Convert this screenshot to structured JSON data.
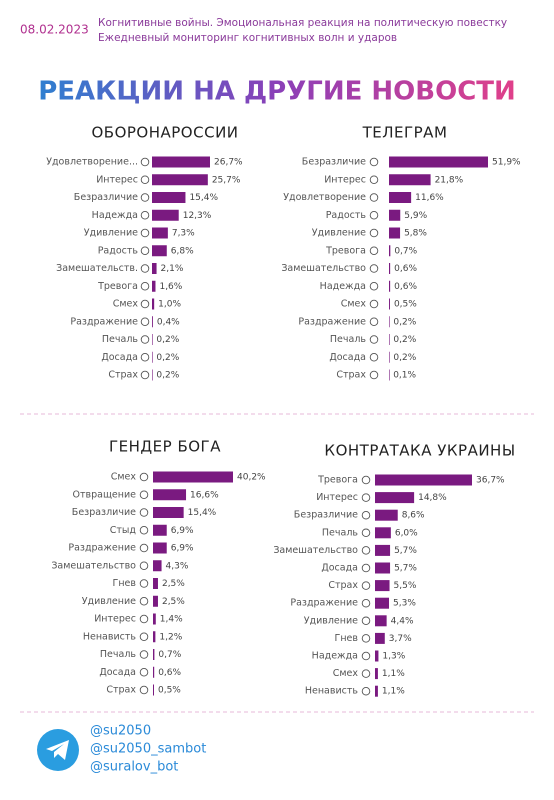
{
  "header": {
    "date": "08.02.2023",
    "subtitle_line1": "Когнитивные войны. Эмоциональная реакция на политическую повестку",
    "subtitle_line2": "Ежедневный мониторинг когнитивных волн и ударов",
    "title": "РЕАКЦИИ НА ДРУГИЕ НОВОСТИ"
  },
  "chart_data": [
    {
      "type": "bar",
      "orientation": "horizontal",
      "title": "ОБОРОНАРОССИИ",
      "color": "#7a1a80",
      "categories": [
        "Удовлетворение...",
        "Интерес",
        "Безразличие",
        "Надежда",
        "Удивление",
        "Радость",
        "Замешательств.",
        "Тревога",
        "Смех",
        "Раздражение",
        "Печаль",
        "Досада",
        "Страх"
      ],
      "values": [
        26.7,
        25.7,
        15.4,
        12.3,
        7.3,
        6.8,
        2.1,
        1.6,
        1,
        0.4,
        0.2,
        0.2,
        0.2
      ],
      "value_labels": [
        "26,7%",
        "25,7%",
        "15,4%",
        "12,3%",
        "7,3%",
        "6,8%",
        "2,1%",
        "1,6%",
        "1,0%",
        "0,4%",
        "0,2%",
        "0,2%",
        "0,2%"
      ]
    },
    {
      "type": "bar",
      "orientation": "horizontal",
      "title": "ТЕЛЕГРАМ",
      "color": "#7a1a80",
      "categories": [
        "Безразличие",
        "Интерес",
        "Удовлетворение",
        "Радость",
        "Удивление",
        "Тревога",
        "Замешательство",
        "Надежда",
        "Смех",
        "Раздражение",
        "Печаль",
        "Досада",
        "Страх"
      ],
      "values": [
        51.9,
        21.8,
        11.6,
        5.9,
        5.8,
        0.7,
        0.6,
        0.6,
        0.5,
        0.2,
        0.2,
        0.2,
        0.1
      ],
      "value_labels": [
        "51,9%",
        "21,8%",
        "11,6%",
        "5,9%",
        "5,8%",
        "0,7%",
        "0,6%",
        "0,6%",
        "0,5%",
        "0,2%",
        "0,2%",
        "0,2%",
        "0,1%"
      ]
    },
    {
      "type": "bar",
      "orientation": "horizontal",
      "title": "ГЕНДЕР БОГА",
      "color": "#7a1a80",
      "categories": [
        "Смех",
        "Отвращение",
        "Безразличие",
        "Стыд",
        "Раздражение",
        "Замешательство",
        "Гнев",
        "Удивление",
        "Интерес",
        "Ненависть",
        "Печаль",
        "Досада",
        "Страх"
      ],
      "values": [
        40.2,
        16.6,
        15.4,
        6.9,
        6.9,
        4.3,
        2.5,
        2.5,
        1.4,
        1.2,
        0.7,
        0.6,
        0.5
      ],
      "value_labels": [
        "40,2%",
        "16,6%",
        "15,4%",
        "6,9%",
        "6,9%",
        "4,3%",
        "2,5%",
        "2,5%",
        "1,4%",
        "1,2%",
        "0,7%",
        "0,6%",
        "0,5%"
      ]
    },
    {
      "type": "bar",
      "orientation": "horizontal",
      "title": "КОНТРАТАКА УКРАИНЫ",
      "color": "#7a1a80",
      "categories": [
        "Тревога",
        "Интерес",
        "Безразличие",
        "Печаль",
        "Замешательство",
        "Досада",
        "Страх",
        "Раздражение",
        "Удивление",
        "Гнев",
        "Надежда",
        "Смех",
        "Ненависть"
      ],
      "values": [
        36.7,
        14.8,
        8.6,
        6,
        5.7,
        5.7,
        5.5,
        5.3,
        4.4,
        3.7,
        1.3,
        1.1,
        1.1
      ],
      "value_labels": [
        "36,7%",
        "14,8%",
        "8,6%",
        "6,0%",
        "5,7%",
        "5,7%",
        "5,5%",
        "5,3%",
        "4,4%",
        "3,7%",
        "1,3%",
        "1,1%",
        "1,1%"
      ]
    }
  ],
  "footer": {
    "handles": [
      "@su2050",
      "@su2050_sambot",
      "@suralov_bot"
    ]
  }
}
